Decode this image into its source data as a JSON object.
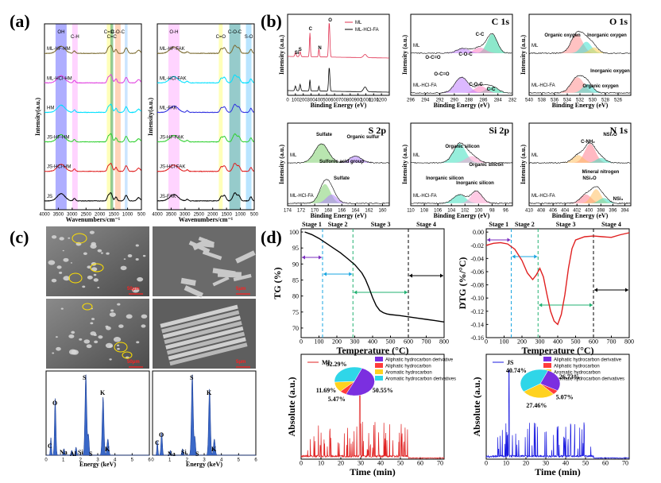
{
  "panel_letters": [
    "(a)",
    "(b)",
    "(c)",
    "(d)"
  ],
  "chart_data": [
    {
      "panel": "a-left",
      "type": "line",
      "title": "",
      "xlabel": "Wavenumbers/cm⁻¹",
      "ylabel": "Intensity(a.u.)",
      "xlim": [
        4000,
        500
      ],
      "xticks": [
        4000,
        3500,
        3000,
        2500,
        2000,
        1500,
        1000,
        500
      ],
      "series": [
        {
          "name": "ML-HF-HM",
          "color": "#7a6a30"
        },
        {
          "name": "ML-HCl-HM",
          "color": "#e040e0"
        },
        {
          "name": "HM",
          "color": "#00e0ff"
        },
        {
          "name": "JS-HF-HM",
          "color": "#30d030"
        },
        {
          "name": "JS-HCl-HM",
          "color": "#e02020"
        },
        {
          "name": "JS",
          "color": "#000000"
        }
      ],
      "band_labels": [
        "OH",
        "C-H",
        "C=O",
        "C=C",
        "C-O-C"
      ]
    },
    {
      "panel": "a-right",
      "type": "line",
      "xlabel": "Wavenumbers/cm⁻¹",
      "ylabel": "Intensity(a.u.)",
      "xlim": [
        4000,
        500
      ],
      "xticks": [
        4000,
        3500,
        3000,
        2500,
        2000,
        1500,
        1000,
        500
      ],
      "series": [
        {
          "name": "ML-HF-FAK",
          "color": "#7a6a30"
        },
        {
          "name": "ML-HCl-FAK",
          "color": "#00e0ff"
        },
        {
          "name": "ML-FAK",
          "color": "#3030e0"
        },
        {
          "name": "JS-HF-FAK",
          "color": "#30d030"
        },
        {
          "name": "JS-HCl-FAK",
          "color": "#e02020"
        },
        {
          "name": "JS-FAK",
          "color": "#000000"
        }
      ],
      "band_labels": [
        "O-H",
        "C=O",
        "C-O-C",
        "S-O"
      ]
    },
    {
      "panel": "b-survey",
      "type": "line",
      "xlabel": "Binding Energy (eV)",
      "ylabel": "Intensity (a.u.)",
      "xlim": [
        0,
        1300
      ],
      "xticks": [
        0,
        100,
        200,
        300,
        400,
        500,
        600,
        700,
        800,
        900,
        1000,
        1100,
        1200
      ],
      "series": [
        {
          "name": "ML",
          "color": "#e03050"
        },
        {
          "name": "ML-HCl-FA",
          "color": "#000000"
        }
      ],
      "peak_labels": [
        "Si",
        "S",
        "C",
        "N",
        "O"
      ]
    },
    {
      "panel": "b-C1s",
      "type": "line",
      "title": "C 1s",
      "xlabel": "Binding Energy (eV)",
      "ylabel": "Intensity (a.u.)",
      "xlim": [
        296,
        282
      ],
      "xticks": [
        296,
        294,
        292,
        290,
        288,
        286,
        284,
        282
      ],
      "series": [
        {
          "name": "ML"
        },
        {
          "name": "ML-HCl-FA"
        }
      ],
      "peak_labels": [
        "C-C",
        "O-C=O",
        "C-O-C",
        "O-C=O",
        "C-O-C",
        "C-C"
      ]
    },
    {
      "panel": "b-O1s",
      "type": "line",
      "title": "O 1s",
      "xlabel": "Binding Energy (eV)",
      "ylabel": "Intensity (a.u.)",
      "xlim": [
        540,
        524
      ],
      "xticks": [
        540,
        538,
        536,
        534,
        532,
        530,
        528,
        526
      ],
      "series": [
        {
          "name": "ML"
        },
        {
          "name": "ML-HCl-FA"
        }
      ],
      "peak_labels": [
        "Organic oxygen",
        "Inorganic oxygen",
        "Inorganic oxygen",
        "Organic oxygen"
      ]
    },
    {
      "panel": "b-S2p",
      "type": "line",
      "title": "S 2p",
      "xlabel": "Binding Energy (eV)",
      "ylabel": "Intensity (a.u.)",
      "xlim": [
        174,
        159
      ],
      "xticks": [
        174,
        172,
        170,
        168,
        166,
        164,
        162,
        160
      ],
      "series": [
        {
          "name": "ML"
        },
        {
          "name": "ML-HCl-FA"
        }
      ],
      "peak_labels": [
        "Sulfate",
        "Organic sulfur",
        "Sulfonic acid group",
        "Sulfate"
      ]
    },
    {
      "panel": "b-Si2p",
      "type": "line",
      "title": "Si 2p",
      "xlabel": "Binding Energy (eV)",
      "ylabel": "Intensity (a.u.)",
      "xlim": [
        110,
        95
      ],
      "xticks": [
        110,
        108,
        106,
        104,
        102,
        100,
        98,
        96
      ],
      "series": [
        {
          "name": "ML"
        },
        {
          "name": "ML-HCl-FA"
        }
      ],
      "peak_labels": [
        "Inorganic silicon",
        "Organic silicon",
        "Inorganic silicon",
        "Organic silicon"
      ]
    },
    {
      "panel": "b-N1s",
      "type": "line",
      "title": "N 1s",
      "xlabel": "Binding Energy (eV)",
      "ylabel": "Intensity (a.u.)",
      "xlim": [
        410,
        393
      ],
      "xticks": [
        410,
        408,
        406,
        404,
        402,
        400,
        398,
        396,
        394
      ],
      "series": [
        {
          "name": "ML"
        },
        {
          "name": "ML-HCl-FA"
        }
      ],
      "peak_labels": [
        "C-NH₂",
        "NSi₂O",
        "Mineral nitrogen",
        "NSi₂O",
        "NSi₃"
      ]
    },
    {
      "panel": "c-EDS-left",
      "type": "bar",
      "xlabel": "Energy (keV)",
      "xlim": [
        0,
        6
      ],
      "xticks": [
        0,
        1,
        2,
        3,
        4,
        5,
        6
      ],
      "element_labels": [
        "C",
        "O",
        "Na",
        "Al",
        "Si",
        "S",
        "S",
        "K",
        "K"
      ]
    },
    {
      "panel": "c-EDS-right",
      "type": "bar",
      "xlabel": "Energy (keV)",
      "xlim": [
        0,
        6
      ],
      "xticks": [
        0,
        1,
        2,
        3,
        4,
        5,
        6
      ],
      "element_labels": [
        "C",
        "O",
        "Na",
        "Si",
        "S",
        "S",
        "K",
        "K"
      ]
    },
    {
      "panel": "d-TG",
      "type": "line",
      "xlabel": "Temperature (°C)",
      "ylabel": "TG (%)",
      "xlim": [
        0,
        800
      ],
      "ylim": [
        67,
        101
      ],
      "xticks": [
        0,
        100,
        200,
        300,
        400,
        500,
        600,
        700,
        800
      ],
      "yticks": [
        70,
        75,
        80,
        85,
        90,
        95,
        100
      ],
      "x": [
        20,
        60,
        100,
        140,
        180,
        220,
        260,
        300,
        340,
        360,
        380,
        400,
        420,
        440,
        460,
        480,
        500,
        550,
        600,
        650,
        700,
        750,
        800
      ],
      "y": [
        100,
        99.2,
        98.0,
        96.5,
        95.0,
        93.5,
        91.7,
        89.8,
        87.2,
        85.2,
        82.5,
        79.5,
        77.0,
        75.5,
        74.8,
        74.4,
        74.2,
        73.9,
        73.5,
        73.1,
        72.7,
        72.3,
        71.9
      ],
      "stages": [
        {
          "name": "Stage 1",
          "from": 0,
          "to": 120
        },
        {
          "name": "Stage 2",
          "from": 120,
          "to": 290
        },
        {
          "name": "Stage 3",
          "from": 290,
          "to": 600
        },
        {
          "name": "Stage 4",
          "from": 600,
          "to": 800
        }
      ]
    },
    {
      "panel": "d-DTG",
      "type": "line",
      "xlabel": "Temperature (°C)",
      "ylabel": "DTG (%/°C)",
      "xlim": [
        0,
        800
      ],
      "ylim": [
        -0.16,
        0.005
      ],
      "xticks": [
        0,
        100,
        200,
        300,
        400,
        500,
        600,
        700,
        800
      ],
      "yticks": [
        0.0,
        -0.02,
        -0.04,
        -0.06,
        -0.08,
        -0.1,
        -0.12,
        -0.14,
        -0.16
      ],
      "x": [
        0,
        40,
        80,
        120,
        160,
        200,
        230,
        260,
        280,
        300,
        320,
        340,
        360,
        380,
        400,
        420,
        440,
        460,
        480,
        500,
        550,
        600,
        650,
        700,
        750,
        800
      ],
      "y": [
        -0.02,
        -0.017,
        -0.016,
        -0.018,
        -0.026,
        -0.043,
        -0.062,
        -0.072,
        -0.065,
        -0.055,
        -0.068,
        -0.095,
        -0.12,
        -0.135,
        -0.14,
        -0.125,
        -0.095,
        -0.055,
        -0.025,
        -0.012,
        -0.007,
        -0.006,
        -0.007,
        -0.008,
        -0.004,
        -0.001
      ],
      "stages": [
        {
          "name": "Stage 1",
          "from": 0,
          "to": 140
        },
        {
          "name": "Stage 2",
          "from": 140,
          "to": 290
        },
        {
          "name": "Stage 3",
          "from": 290,
          "to": 600
        },
        {
          "name": "Stage 4",
          "from": 600,
          "to": 800
        }
      ]
    },
    {
      "panel": "d-GCMS-ML",
      "type": "line",
      "series_name": "ML",
      "xlabel": "Time (min)",
      "ylabel": "Absolute (a.u.)",
      "xlim": [
        0,
        72
      ],
      "xticks": [
        0,
        10,
        20,
        30,
        40,
        50,
        60,
        70
      ],
      "pie": {
        "labels": [
          "Aliphatic hydrocarbon derivative",
          "Aliphatic hydrocarbon",
          "Aromatic hydrocarbon",
          "Aromatic hydrocarbon derivatives"
        ],
        "values": [
          50.55,
          5.47,
          11.69,
          32.29
        ],
        "colors": [
          "#7b2fe0",
          "#ff3b3b",
          "#ffd21f",
          "#2fd6e8"
        ]
      }
    },
    {
      "panel": "d-GCMS-JS",
      "type": "line",
      "series_name": "JS",
      "xlabel": "Time (min)",
      "ylabel": "Absolute (a.u.)",
      "xlim": [
        0,
        72
      ],
      "xticks": [
        0,
        10,
        20,
        30,
        40,
        50,
        60,
        70
      ],
      "pie": {
        "labels": [
          "Aliphatic hydrocarbon derivative",
          "Aliphatic hydrocarbon",
          "Aromatic hydrocarbon",
          "Aromatic hydrocarbon derivatives"
        ],
        "values": [
          26.73,
          5.07,
          27.46,
          40.74
        ],
        "colors": [
          "#7b2fe0",
          "#ff3b3b",
          "#ffd21f",
          "#2fd6e8"
        ]
      }
    }
  ],
  "sem": {
    "scale_labels": [
      "50μm",
      "5μm",
      "50μm",
      "5μm"
    ]
  }
}
